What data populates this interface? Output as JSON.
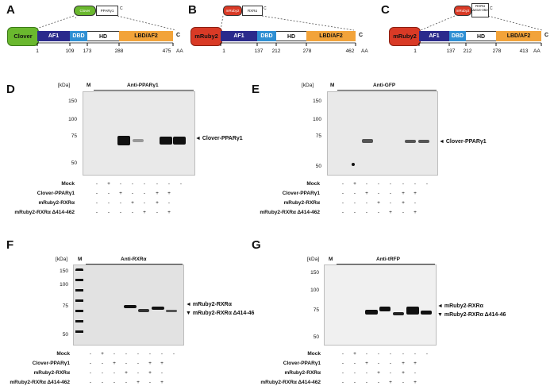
{
  "panels": {
    "A": {
      "letter": "A",
      "tag": "Clover",
      "mini_tag": "Clover",
      "mini_name": "PPARγ1",
      "domains": [
        "AF1",
        "DBD",
        "HD",
        "LBD/AF2"
      ],
      "c": "C",
      "ticks": [
        "1",
        "109",
        "173",
        "288",
        "475"
      ],
      "aa": "AA"
    },
    "B": {
      "letter": "B",
      "tag": "mRuby2",
      "mini_tag": "mRuby2",
      "mini_name": "RXRα",
      "domains": [
        "AF1",
        "DBD",
        "HD",
        "LBD/AF2"
      ],
      "c": "C",
      "ticks": [
        "1",
        "137",
        "212",
        "278",
        "462"
      ],
      "aa": "AA"
    },
    "C": {
      "letter": "C",
      "tag": "mRuby2",
      "mini_tag": "mRuby2",
      "mini_name": "RXRα Δ414-462",
      "domains": [
        "AF1",
        "DBD",
        "HD",
        "LBD/AF2"
      ],
      "c": "C",
      "ticks": [
        "1",
        "137",
        "212",
        "278",
        "413"
      ],
      "aa": "AA"
    },
    "D": {
      "letter": "D",
      "kda": "[kDa]",
      "m": "M",
      "antibody": "Anti-PPARγ1",
      "mw": [
        "150",
        "100",
        "75",
        "50"
      ],
      "arrow": "◄ Clover-PPARγ1"
    },
    "E": {
      "letter": "E",
      "kda": "[kDa]",
      "m": "M",
      "antibody": "Anti-GFP",
      "mw": [
        "150",
        "100",
        "75",
        "50"
      ],
      "arrow": "◄ Clover-PPARγ1"
    },
    "F": {
      "letter": "F",
      "kda": "[kDa]",
      "m": "M",
      "antibody": "Anti-RXRα",
      "mw": [
        "150",
        "100",
        "75",
        "50"
      ],
      "arrow1": "◄ mRuby2-RXRα",
      "arrow2": "▼ mRuby2-RXRα Δ414-46"
    },
    "G": {
      "letter": "G",
      "kda": "[kDa]",
      "m": "M",
      "antibody": "Anti-tRFP",
      "mw": [
        "150",
        "100",
        "75",
        "50"
      ],
      "arrow1": "◄ mRuby2-RXRα",
      "arrow2": "▼ mRuby2-RXRα Δ414-46"
    }
  },
  "rows": {
    "labels": [
      "Mock",
      "Clover-PPARγ1",
      "mRuby2-RXRα",
      "mRuby2-RXRα Δ414-462"
    ],
    "labels_G": [
      "Mock",
      "Clover-PPARγ1",
      "mRuby2-RXRα",
      "mRuby2-RXRα Δ414-462"
    ],
    "marks": [
      [
        "-",
        "+",
        "-",
        "-",
        "-",
        "-",
        "-",
        "-"
      ],
      [
        "-",
        "-",
        "+",
        "-",
        "-",
        "+",
        "+",
        ""
      ],
      [
        "-",
        "-",
        "-",
        "+",
        "-",
        "+",
        "-",
        ""
      ],
      [
        "-",
        "-",
        "-",
        "-",
        "+",
        "-",
        "+",
        ""
      ]
    ]
  },
  "colors": {
    "clover": "#6ab82e",
    "ruby": "#d93a26",
    "af1": "#2b2a8c",
    "dbd": "#2f8fd3",
    "hd": "#ffffff",
    "lbd": "#f2a33a"
  }
}
